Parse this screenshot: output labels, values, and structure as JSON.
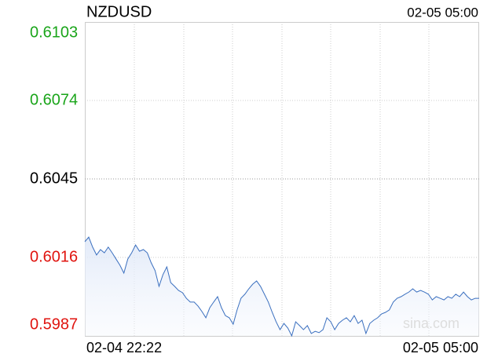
{
  "chart_data": {
    "type": "line",
    "title": "NZDUSD",
    "time": "02-05 05:00",
    "x_labels": [
      "02-04 22:22",
      "02-05 05:00"
    ],
    "watermark": "sina.com",
    "ylim": [
      0.5987,
      0.6103
    ],
    "yticks": [
      0.5987,
      0.6016,
      0.6045,
      0.6074,
      0.6103
    ],
    "base": 0.6045,
    "up_color": "#1aa51a",
    "down_color": "#e0140f",
    "color": "#3a6fbf",
    "grid": true,
    "values": [
      0.60218,
      0.60235,
      0.60198,
      0.60169,
      0.60189,
      0.60177,
      0.60198,
      0.60177,
      0.60154,
      0.60131,
      0.60102,
      0.60154,
      0.60177,
      0.60206,
      0.60183,
      0.60189,
      0.60177,
      0.6014,
      0.60111,
      0.60053,
      0.60096,
      0.60125,
      0.60067,
      0.60053,
      0.60038,
      0.6003,
      0.60009,
      0.59995,
      0.59995,
      0.5998,
      0.5996,
      0.59937,
      0.59974,
      0.59995,
      0.60015,
      0.59974,
      0.59945,
      0.59937,
      0.59913,
      0.59966,
      0.60009,
      0.60024,
      0.60044,
      0.60061,
      0.60073,
      0.60053,
      0.60024,
      0.59995,
      0.59957,
      0.59922,
      0.59893,
      0.59916,
      0.59899,
      0.5987,
      0.59922,
      0.59908,
      0.59893,
      0.59908,
      0.59879,
      0.59887,
      0.59882,
      0.59893,
      0.59937,
      0.59922,
      0.59893,
      0.59916,
      0.59928,
      0.59937,
      0.59922,
      0.59945,
      0.59916,
      0.59928,
      0.59879,
      0.59916,
      0.59928,
      0.59937,
      0.59951,
      0.59957,
      0.59966,
      0.59995,
      0.60009,
      0.60015,
      0.60024,
      0.60032,
      0.60044,
      0.60032,
      0.60038,
      0.60032,
      0.60024,
      0.60003,
      0.60015,
      0.60009,
      0.60003,
      0.60015,
      0.60009,
      0.60024,
      0.60015,
      0.60032,
      0.60015,
      0.60003,
      0.60009,
      0.60009
    ]
  }
}
